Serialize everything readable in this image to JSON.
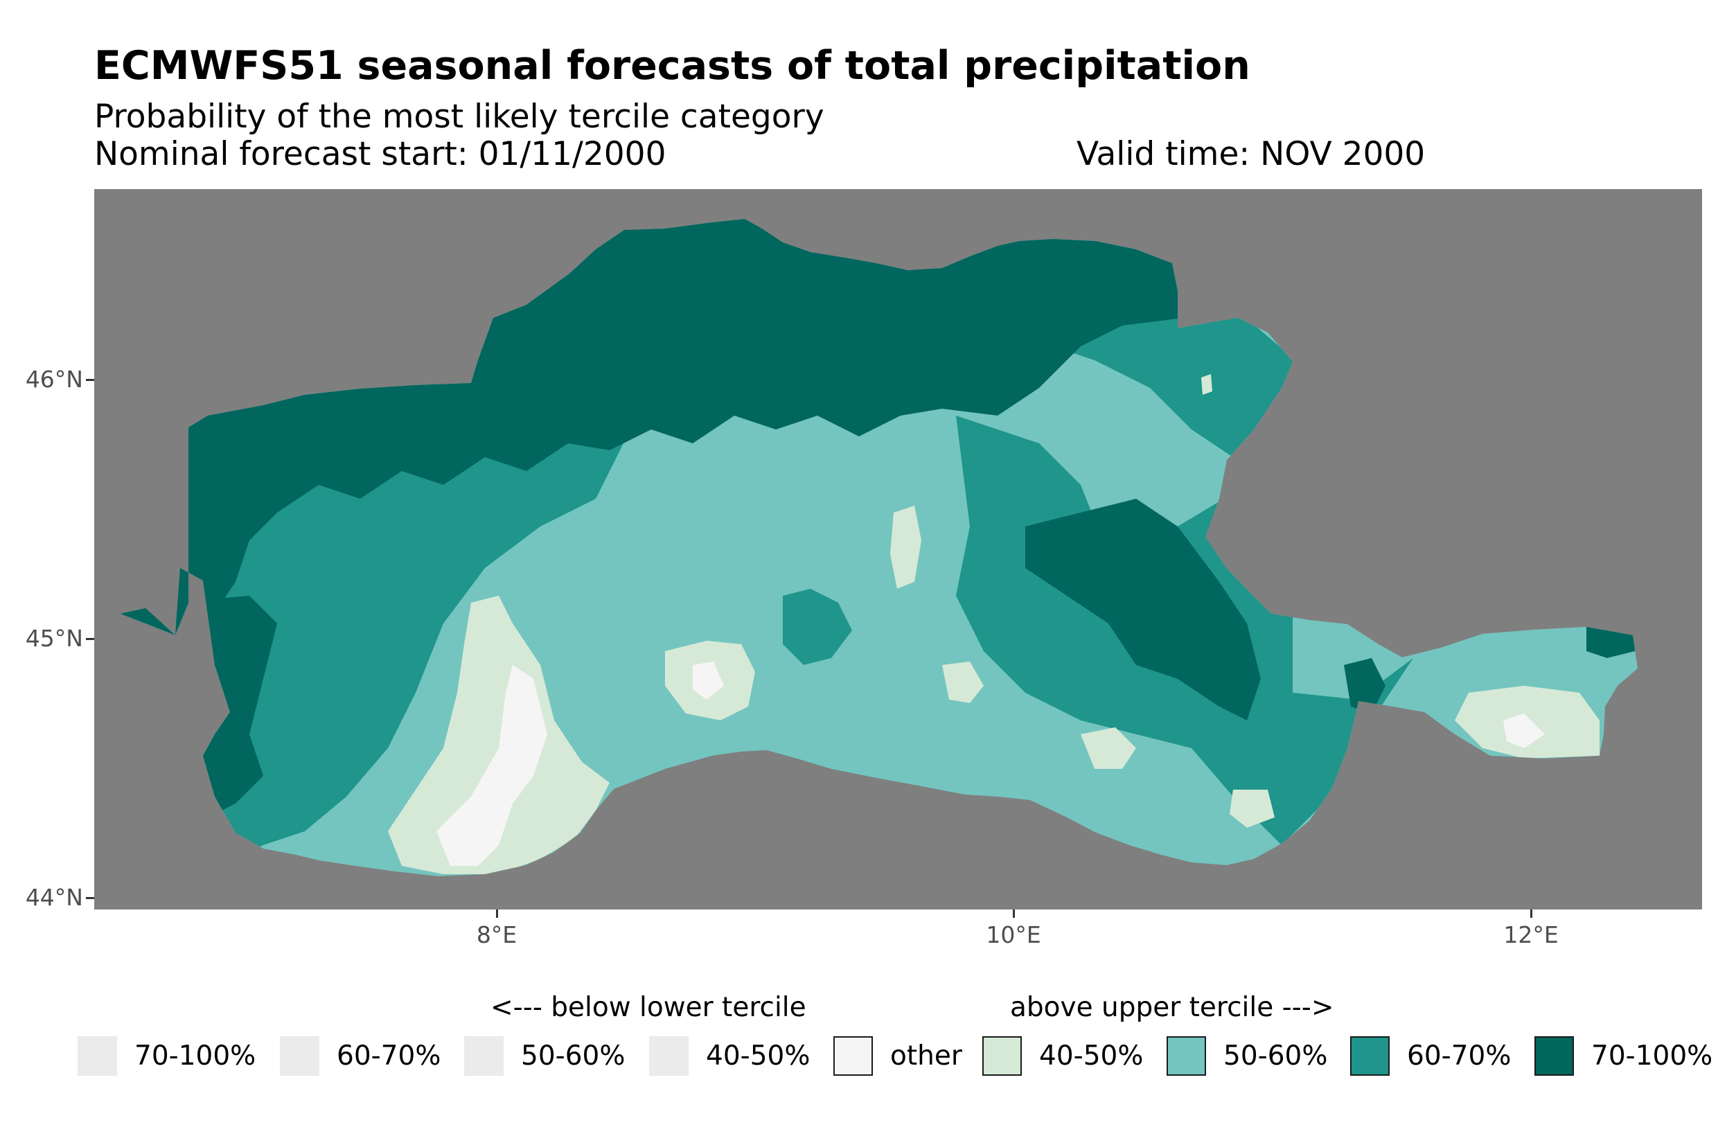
{
  "title": "ECMWFS51 seasonal forecasts of total precipitation",
  "subtitle": "Probability of the most likely tercile category",
  "forecast_start": "Nominal forecast start: 01/11/2000",
  "valid_time": "Valid time: NOV 2000",
  "colors": {
    "panel_bg": "#7f7f7f",
    "above_70_100": "#01665e",
    "above_60_70": "#1f958b",
    "above_50_60": "#74c5bf",
    "above_40_50": "#d6e9d7",
    "other": "#f5f5f5",
    "below_keys": "#ebebeb"
  },
  "chart_data": {
    "type": "heatmap",
    "title": "ECMWFS51 seasonal forecasts of total precipitation",
    "subtitle": "Probability of the most likely tercile category",
    "xlabel": "",
    "ylabel": "",
    "x_ticks": [
      "8°E",
      "10°E",
      "12°E"
    ],
    "y_ticks": [
      "46°N",
      "45°N",
      "44°N"
    ],
    "x_tick_values": [
      8,
      10,
      12
    ],
    "y_tick_values": [
      46,
      45,
      44
    ],
    "xlim": [
      6.45,
      12.65
    ],
    "ylim": [
      43.96,
      46.74
    ],
    "legend_position": "bottom",
    "legend": {
      "below_title": "<--- below lower tercile",
      "above_title": "above upper tercile --->",
      "below": [
        {
          "label": "70-100%",
          "color": "#ebebeb"
        },
        {
          "label": "60-70%",
          "color": "#ebebeb"
        },
        {
          "label": "50-60%",
          "color": "#ebebeb"
        },
        {
          "label": "40-50%",
          "color": "#ebebeb"
        }
      ],
      "other": {
        "label": "other",
        "color": "#f5f5f5"
      },
      "above": [
        {
          "label": "40-50%",
          "color": "#d6e9d7"
        },
        {
          "label": "50-60%",
          "color": "#74c5bf"
        },
        {
          "label": "60-70%",
          "color": "#1f958b"
        },
        {
          "label": "70-100%",
          "color": "#01665e"
        }
      ]
    },
    "dominant_categories": {
      "north_alpine_arc": "above 70-100%",
      "west_piedmont": "above 70-100%",
      "central_po_plain": "above 50-60%",
      "east_lombardy_veneto": "above 60-70%",
      "southwest_piedmont": "above 40-50% / other",
      "po_delta": "above 40-50% / 50-60%"
    }
  }
}
